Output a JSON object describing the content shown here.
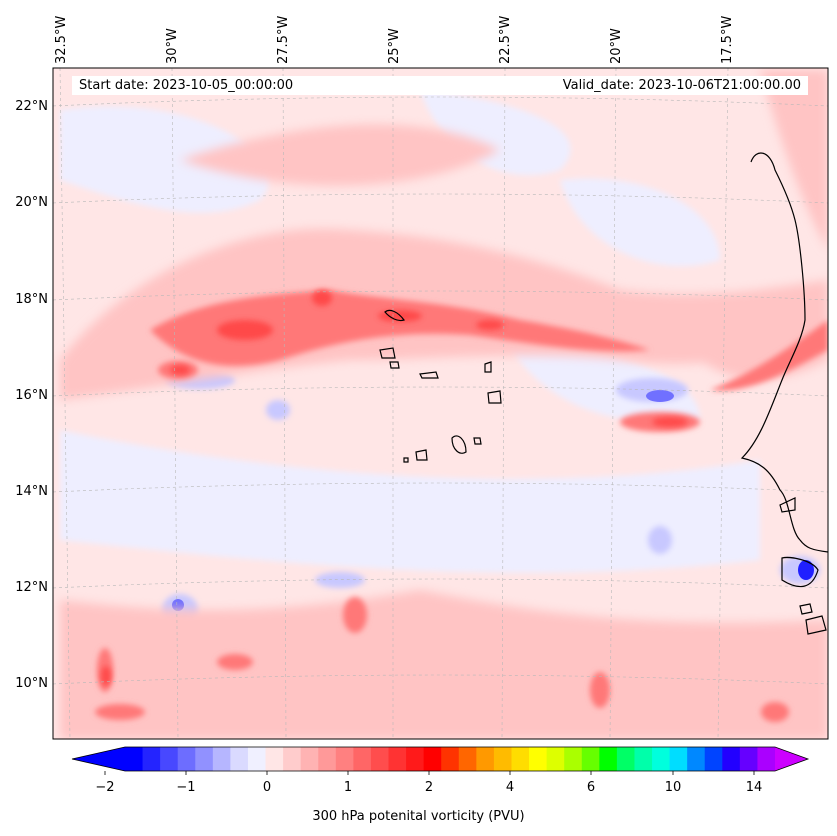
{
  "map": {
    "start_label": "Start date: 2023-10-05_00:00:00",
    "valid_label": "Valid_date: 2023-10-06T21:00:00.00",
    "lat_ticks": [
      "22°N",
      "20°N",
      "18°N",
      "16°N",
      "14°N",
      "12°N",
      "10°N"
    ],
    "lon_ticks": [
      "32.5°W",
      "30°W",
      "27.5°W",
      "25°W",
      "22.5°W",
      "20°W",
      "17.5°W"
    ],
    "extent": {
      "lon_min": -32.7,
      "lon_max": -15.2,
      "lat_min": 8.9,
      "lat_max": 22.8
    },
    "coastline_color": "#000000",
    "gridlines": true
  },
  "colorbar": {
    "title": "300 hPa potenital vorticity (PVU)",
    "ticks": [
      "−2",
      "−1",
      "0",
      "1",
      "2",
      "4",
      "6",
      "10",
      "14"
    ],
    "colors": [
      "#0000ff",
      "#2424ff",
      "#4848ff",
      "#6d6dff",
      "#9191ff",
      "#b6b6ff",
      "#dadaff",
      "#f0f0ff",
      "#ffe6e6",
      "#ffcccc",
      "#ffb3b3",
      "#ff9999",
      "#ff8080",
      "#ff6666",
      "#ff4d4d",
      "#ff3333",
      "#ff1a1a",
      "#ff0000",
      "#ff3300",
      "#ff6600",
      "#ff9900",
      "#ffbb00",
      "#ffdd00",
      "#ffff00",
      "#ddff00",
      "#aaff00",
      "#66ff00",
      "#00ff00",
      "#00ff66",
      "#00ffaa",
      "#00ffdd",
      "#00ddff",
      "#0088ff",
      "#0044ff",
      "#2200ff",
      "#6600ff",
      "#aa00ff"
    ],
    "extend_min_color": "#0000ff",
    "extend_max_color": "#cc00ff"
  }
}
